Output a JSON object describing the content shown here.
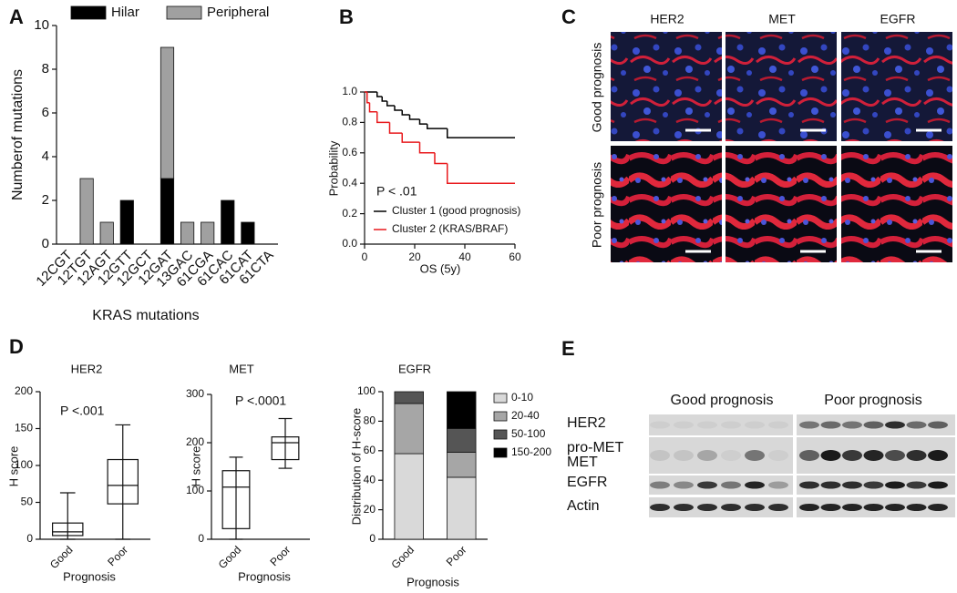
{
  "panel_labels": [
    "A",
    "B",
    "C",
    "D",
    "E"
  ],
  "chart_data": [
    {
      "type": "bar",
      "stacked": true,
      "legend": "top",
      "xlabel": "KRAS mutations",
      "ylabel": "Numberof mutations",
      "categories": [
        "12CGT",
        "12TGT",
        "12AGT",
        "12GTT",
        "12GCT",
        "12GAT",
        "13GAC",
        "61CGA",
        "61CAC",
        "61CAT",
        "61CTA"
      ],
      "series": [
        {
          "name": "Hilar",
          "color": "#000000",
          "values": [
            0,
            0,
            0,
            2,
            0,
            3,
            0,
            0,
            2,
            1,
            0
          ]
        },
        {
          "name": "Peripheral",
          "color": "#a0a0a0",
          "values": [
            0,
            3,
            1,
            0,
            0,
            6,
            1,
            1,
            0,
            0,
            0
          ]
        }
      ],
      "ylim": [
        0,
        10
      ],
      "yticks": [
        0,
        2,
        4,
        6,
        8,
        10
      ]
    },
    {
      "type": "line",
      "step": true,
      "xlabel": "OS (5y)",
      "ylabel": "Probability",
      "annotation": "P < .01",
      "series": [
        {
          "name": "Cluster 1 (good prognosis)",
          "color": "#000000",
          "x": [
            0,
            5,
            7,
            9,
            12,
            15,
            18,
            22,
            25,
            33,
            60
          ],
          "values": [
            1.0,
            0.97,
            0.94,
            0.91,
            0.88,
            0.85,
            0.82,
            0.79,
            0.76,
            0.7,
            0.7
          ]
        },
        {
          "name": "Cluster 2 (KRAS/BRAF)",
          "color": "#e8191c",
          "x": [
            0,
            1,
            2,
            5,
            10,
            15,
            22,
            28,
            33,
            60
          ],
          "values": [
            1.0,
            0.93,
            0.87,
            0.8,
            0.73,
            0.67,
            0.6,
            0.53,
            0.4,
            0.4
          ]
        }
      ],
      "xlim": [
        0,
        60
      ],
      "xticks": [
        0,
        20,
        40,
        60
      ],
      "ylim": [
        0,
        1
      ],
      "yticks": [
        {
          "value": 0,
          "label": "0.0"
        },
        {
          "value": 0.2,
          "label": "0.2"
        },
        {
          "value": 0.4,
          "label": "0.4"
        },
        {
          "value": 0.6,
          "label": "0.6"
        },
        {
          "value": 0.8,
          "label": "0.8"
        },
        {
          "value": 1,
          "label": "1.0"
        }
      ]
    },
    {
      "type": "box",
      "title": "HER2",
      "xlabel": "Prognosis",
      "ylabel": "H score",
      "annotation": "P <.001",
      "categories": [
        "Good",
        "Poor"
      ],
      "whisker_low": [
        0,
        0
      ],
      "q1": [
        5,
        48
      ],
      "median": [
        10,
        73
      ],
      "q3": [
        22,
        108
      ],
      "whisker_high": [
        63,
        155
      ],
      "ylim": [
        0,
        200
      ],
      "yticks": [
        0,
        50,
        100,
        150,
        200
      ]
    },
    {
      "type": "box",
      "title": "MET",
      "xlabel": "Prognosis",
      "ylabel": "H score",
      "annotation": "P <.0001",
      "categories": [
        "Good",
        "Poor"
      ],
      "whisker_low": [
        0,
        147
      ],
      "q1": [
        22,
        165
      ],
      "median": [
        108,
        200
      ],
      "q3": [
        142,
        212
      ],
      "whisker_high": [
        170,
        250
      ],
      "ylim": [
        0,
        300
      ],
      "yticks": [
        0,
        100,
        200,
        300
      ]
    },
    {
      "type": "bar",
      "stacked": true,
      "legend": "right",
      "title": "EGFR",
      "xlabel": "Prognosis",
      "ylabel": "Distribution of H-score",
      "categories": [
        "Good",
        "Poor"
      ],
      "series": [
        {
          "name": "0-10",
          "color": "#d9d9d9",
          "values": [
            58,
            42
          ]
        },
        {
          "name": "20-40",
          "color": "#a6a6a6",
          "values": [
            34,
            17
          ]
        },
        {
          "name": "50-100",
          "color": "#555555",
          "values": [
            8,
            16
          ]
        },
        {
          "name": "150-200",
          "color": "#000000",
          "values": [
            0,
            25
          ]
        }
      ],
      "ylim": [
        0,
        100
      ],
      "yticks": [
        0,
        20,
        40,
        60,
        80,
        100
      ]
    }
  ],
  "micrographs": {
    "columns": [
      "HER2",
      "MET",
      "EGFR"
    ],
    "rows": [
      "Good prognosis",
      "Poor prognosis"
    ]
  },
  "western_blot": {
    "groups": [
      "Good prognosis",
      "Poor prognosis"
    ],
    "rows": [
      "HER2",
      "pro-MET",
      "MET",
      "EGFR",
      "Actin"
    ]
  }
}
